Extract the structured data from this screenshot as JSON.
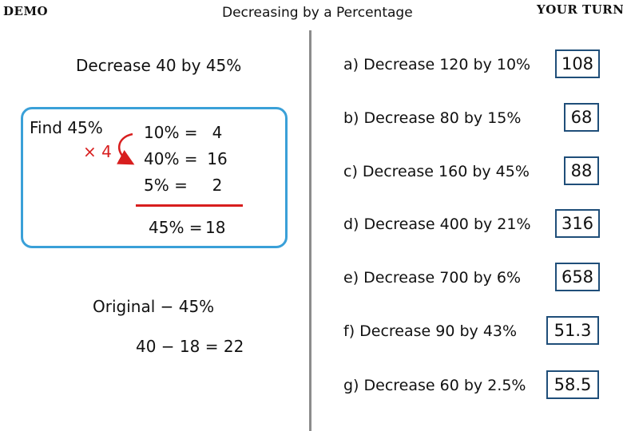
{
  "header": {
    "left_tag": "DEMO",
    "title": "Decreasing by a Percentage",
    "right_tag": "YOUR TURN"
  },
  "demo": {
    "question": "Decrease 40 by 45%",
    "find_label": "Find 45%",
    "multiplier": "× 4",
    "steps": [
      {
        "pct": "10% =",
        "val": "4"
      },
      {
        "pct": "40% =",
        "val": "16"
      },
      {
        "pct": "5% =",
        "val": "2"
      }
    ],
    "total": {
      "pct": "45% =",
      "val": "18"
    },
    "method": "Original − 45%",
    "calculation": "40 − 18 =  22"
  },
  "your_turn": [
    {
      "question": "a)  Decrease 120 by 10%",
      "answer": "108"
    },
    {
      "question": "b) Decrease 80 by 15%",
      "answer": "68"
    },
    {
      "question": "c) Decrease 160 by 45%",
      "answer": "88"
    },
    {
      "question": "d) Decrease 400 by 21%",
      "answer": "316"
    },
    {
      "question": "e) Decrease 700 by 6%",
      "answer": "658"
    },
    {
      "question": "f) Decrease 90 by 43%",
      "answer": "51.3"
    },
    {
      "question": "g) Decrease 60 by 2.5%",
      "answer": "58.5"
    }
  ],
  "colors": {
    "box_border": "#3aa0d8",
    "answer_border": "#1f4e79",
    "accent_red": "#d81e1e",
    "divider": "#8c8c8c"
  }
}
